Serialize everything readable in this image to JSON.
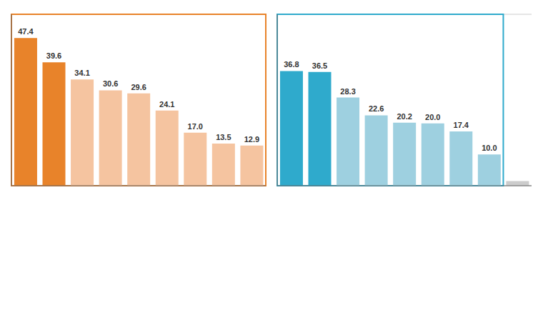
{
  "chart_data": [
    {
      "type": "bar",
      "categories": [
        null,
        null,
        null,
        null,
        null,
        null,
        null,
        null,
        null
      ],
      "values": [
        47.4,
        39.6,
        34.1,
        30.6,
        29.6,
        24.1,
        17.0,
        13.5,
        12.9
      ],
      "value_labels": [
        "47.4",
        "39.6",
        "34.1",
        "30.6",
        "29.6",
        "24.1",
        "17.0",
        "13.5",
        "12.9"
      ],
      "colors": [
        "#E8832A",
        "#E8832A",
        "#F5C4A0",
        "#F5C4A0",
        "#F5C4A0",
        "#F5C4A0",
        "#F5C4A0",
        "#F5C4A0",
        "#F5C4A0"
      ],
      "ylim": [
        0,
        55
      ],
      "yticks": [
        10,
        20,
        30,
        40,
        50
      ],
      "grid": true,
      "tick_labels": false,
      "data_labels": true
    },
    {
      "type": "bar",
      "categories": [
        null,
        null,
        null,
        null,
        null,
        null,
        null,
        null,
        null
      ],
      "values": [
        36.8,
        36.5,
        28.3,
        22.6,
        20.2,
        20.0,
        17.4,
        10.0,
        1.5
      ],
      "value_labels": [
        "36.8",
        "36.5",
        "28.3",
        "22.6",
        "20.2",
        "20.0",
        "17.4",
        "10.0",
        null
      ],
      "colors": [
        "#2FAACC",
        "#2FAACC",
        "#9ED0E0",
        "#9ED0E0",
        "#9ED0E0",
        "#9ED0E0",
        "#9ED0E0",
        "#9ED0E0",
        "#CCCCCC"
      ],
      "ylim": [
        0,
        55
      ],
      "yticks": [
        10,
        20,
        30,
        40,
        50
      ],
      "grid": true,
      "tick_labels": false,
      "data_labels": true
    }
  ]
}
